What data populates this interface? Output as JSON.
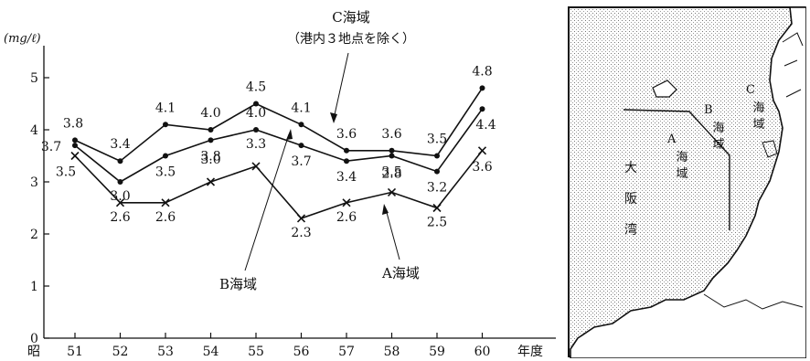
{
  "chart_data": {
    "type": "line",
    "unit_label": "(mg/ℓ)",
    "x_prefix": "昭",
    "x_suffix": "年度",
    "categories": [
      "51",
      "52",
      "53",
      "54",
      "55",
      "56",
      "57",
      "58",
      "59",
      "60"
    ],
    "y_ticks": [
      "0",
      "1",
      "2",
      "3",
      "4",
      "5"
    ],
    "ylim": [
      0,
      5.3
    ],
    "series": [
      {
        "name": "C海域",
        "note": "（港内３地点を除く）",
        "marker": "dot",
        "values": [
          3.8,
          3.4,
          4.1,
          4.0,
          4.5,
          4.1,
          3.6,
          3.6,
          3.5,
          4.8
        ],
        "labels": [
          "3.8",
          "3.4",
          "4.1",
          "4.0",
          "4.5",
          "4.1",
          "3.6",
          "3.6",
          "3.5",
          "4.8"
        ]
      },
      {
        "name": "B海域",
        "marker": "dot",
        "values": [
          3.7,
          3.0,
          3.5,
          3.8,
          4.0,
          3.7,
          3.4,
          3.5,
          3.2,
          4.4
        ],
        "labels": [
          "3.7",
          "3.0",
          "3.5",
          "3.8",
          "4.0",
          "3.7",
          "3.4",
          "3.5",
          "3.2",
          "4.4"
        ]
      },
      {
        "name": "A海域",
        "marker": "cross",
        "values": [
          3.5,
          2.6,
          2.6,
          3.0,
          3.3,
          2.3,
          2.6,
          2.8,
          2.5,
          3.6
        ],
        "labels": [
          "3.5",
          "2.6",
          "2.6",
          "3.0",
          "3.3",
          "2.3",
          "2.6",
          "2.8",
          "2.5",
          "3.6"
        ]
      }
    ]
  },
  "map": {
    "labels": {
      "sea": "大阪湾",
      "a_letter": "A",
      "a_name": "海域",
      "b_letter": "B",
      "b_name": "海域",
      "c_letter": "C",
      "c_name": "海域"
    }
  }
}
